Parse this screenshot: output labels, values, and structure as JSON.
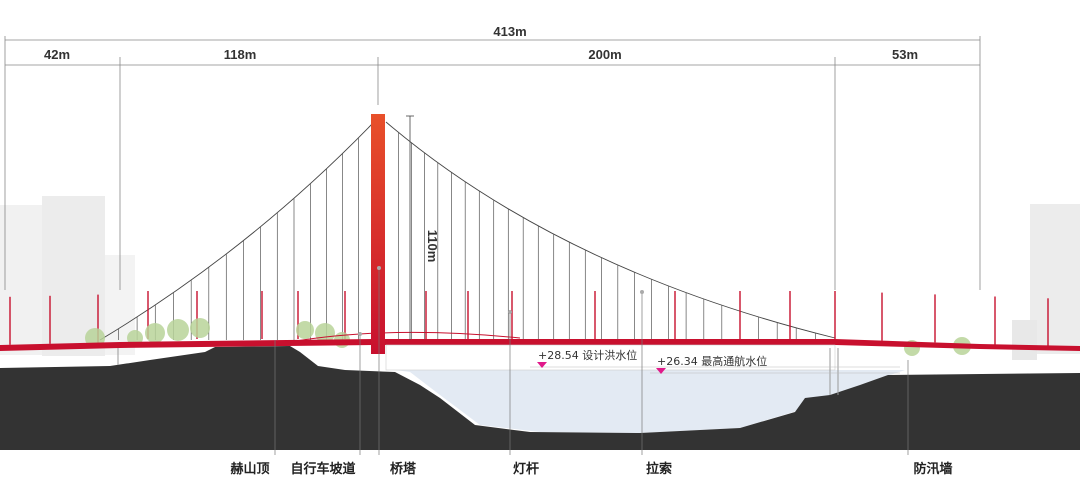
{
  "dimensions": {
    "total": "413m",
    "spans": [
      "42m",
      "118m",
      "200m",
      "53m"
    ]
  },
  "tower_height": "110m",
  "water_levels": [
    {
      "label": "+28.54 设计洪水位"
    },
    {
      "label": "+26.34 最高通航水位"
    }
  ],
  "callouts": [
    "赫山顶",
    "自行车坡道",
    "桥塔",
    "灯杆",
    "拉索",
    "防汛墙"
  ],
  "colors": {
    "deck": "#c8102e",
    "tower_top": "#e8502a",
    "tower_bottom": "#c8102e",
    "ground": "#333333",
    "water": "#e3eaf3",
    "marker": "#e0198a",
    "tree": "#b9d49a"
  }
}
